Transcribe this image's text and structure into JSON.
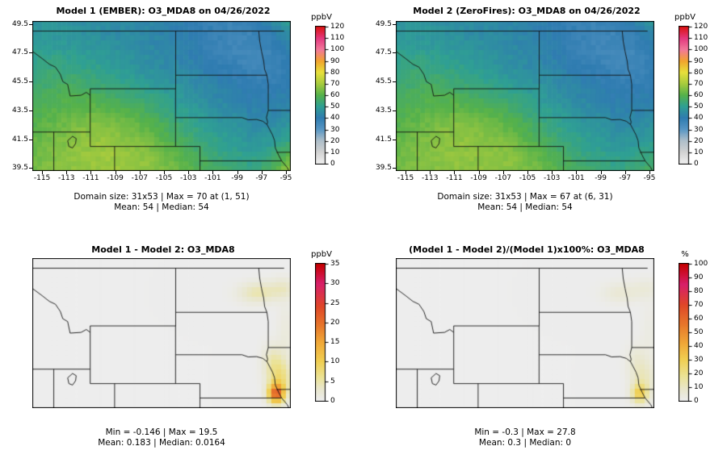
{
  "figure": {
    "background": "#ffffff"
  },
  "map_geometry": {
    "lon_range": [
      -115.8,
      -94.6
    ],
    "lat_range": [
      39.3,
      49.7
    ],
    "boundary_color": "#141414",
    "boundaries": [
      [
        [
          -115.8,
          49
        ],
        [
          -95.15,
          49
        ]
      ],
      [
        [
          -104.04,
          49
        ],
        [
          -104.04,
          45
        ]
      ],
      [
        [
          -111.05,
          45
        ],
        [
          -104.04,
          45
        ]
      ],
      [
        [
          -115.8,
          47.6
        ],
        [
          -115.0,
          47.1
        ],
        [
          -114.4,
          46.7
        ],
        [
          -113.9,
          46.5
        ],
        [
          -113.5,
          46.0
        ],
        [
          -113.3,
          45.5
        ],
        [
          -112.9,
          45.3
        ],
        [
          -112.7,
          44.5
        ],
        [
          -111.8,
          44.55
        ],
        [
          -111.37,
          44.75
        ],
        [
          -111.05,
          44.55
        ]
      ],
      [
        [
          -111.05,
          45
        ],
        [
          -111.05,
          41
        ]
      ],
      [
        [
          -115.8,
          42
        ],
        [
          -111.05,
          42
        ]
      ],
      [
        [
          -114.04,
          42
        ],
        [
          -114.04,
          39.3
        ]
      ],
      [
        [
          -111.05,
          41
        ],
        [
          -102.05,
          41
        ]
      ],
      [
        [
          -109.05,
          41
        ],
        [
          -109.05,
          39.3
        ]
      ],
      [
        [
          -104.05,
          45
        ],
        [
          -104.05,
          41
        ]
      ],
      [
        [
          -102.05,
          41
        ],
        [
          -102.05,
          39.3
        ]
      ],
      [
        [
          -102.05,
          40
        ],
        [
          -95.35,
          40
        ]
      ],
      [
        [
          -104.05,
          43
        ],
        [
          -98.6,
          43
        ],
        [
          -98.1,
          42.85
        ],
        [
          -97.4,
          42.87
        ],
        [
          -96.9,
          42.75
        ],
        [
          -96.55,
          42.52
        ]
      ],
      [
        [
          -96.55,
          42.52
        ],
        [
          -96.35,
          42.2
        ],
        [
          -96.1,
          41.8
        ],
        [
          -95.93,
          41.4
        ],
        [
          -95.87,
          40.9
        ],
        [
          -95.6,
          40.4
        ],
        [
          -95.35,
          40.0
        ]
      ],
      [
        [
          -95.35,
          40.0
        ],
        [
          -95.1,
          39.75
        ],
        [
          -94.9,
          39.55
        ],
        [
          -94.75,
          39.3
        ]
      ],
      [
        [
          -104.04,
          45.94
        ],
        [
          -96.56,
          45.94
        ]
      ],
      [
        [
          -96.56,
          45.94
        ],
        [
          -96.75,
          46.35
        ],
        [
          -96.82,
          46.9
        ],
        [
          -97.0,
          47.6
        ],
        [
          -97.15,
          48.3
        ],
        [
          -97.23,
          49.0
        ]
      ],
      [
        [
          -96.56,
          45.94
        ],
        [
          -96.45,
          45.3
        ],
        [
          -96.45,
          43.5
        ]
      ],
      [
        [
          -96.45,
          43.5
        ],
        [
          -94.6,
          43.5
        ]
      ],
      [
        [
          -96.45,
          43.5
        ],
        [
          -96.6,
          43.0
        ],
        [
          -96.5,
          42.7
        ],
        [
          -96.55,
          42.52
        ]
      ],
      [
        [
          -95.77,
          40.59
        ],
        [
          -94.6,
          40.6
        ]
      ],
      [
        [
          -112.9,
          41.4
        ],
        [
          -112.5,
          41.7
        ],
        [
          -112.2,
          41.55
        ],
        [
          -112.25,
          41.2
        ],
        [
          -112.5,
          40.9
        ],
        [
          -112.8,
          41.0
        ],
        [
          -112.9,
          41.4
        ]
      ]
    ]
  },
  "chart_data": [
    {
      "type": "heatmap",
      "title": "Model 1 (EMBER): O3_MDA8 on 04/26/2022",
      "caption1": "Domain size: 31x53 | Max = 70 at (1, 51)",
      "caption2": "Mean: 54 |  Median: 54",
      "stats": {
        "domain_size": "31x53",
        "max": 70,
        "max_at": "(1, 51)",
        "mean": 54,
        "median": 54
      },
      "axes": {
        "x_ticks": [
          -115,
          -113,
          -111,
          -109,
          -107,
          -105,
          -103,
          -101,
          -99,
          -97,
          -95
        ],
        "y_ticks": [
          39.5,
          41.5,
          43.5,
          45.5,
          47.5,
          49.5
        ]
      },
      "colorbar": {
        "label": "ppbV",
        "min": 0,
        "max": 120,
        "ticks": [
          0,
          10,
          20,
          30,
          40,
          50,
          60,
          70,
          80,
          90,
          100,
          110,
          120
        ],
        "stops": [
          {
            "v": 0,
            "c": "#efefef"
          },
          {
            "v": 10,
            "c": "#d2d2d2"
          },
          {
            "v": 20,
            "c": "#aebfca"
          },
          {
            "v": 30,
            "c": "#5897c4"
          },
          {
            "v": 40,
            "c": "#2f7cb1"
          },
          {
            "v": 50,
            "c": "#2fa094"
          },
          {
            "v": 60,
            "c": "#56b24b"
          },
          {
            "v": 70,
            "c": "#a8cc3e"
          },
          {
            "v": 80,
            "c": "#e8e13c"
          },
          {
            "v": 90,
            "c": "#f2a42e"
          },
          {
            "v": 100,
            "c": "#f2799b"
          },
          {
            "v": 110,
            "c": "#e5397f"
          },
          {
            "v": 120,
            "c": "#dc1414"
          }
        ]
      },
      "field": {
        "kind": "grid",
        "nx": 14,
        "ny": 11,
        "noise": 1.5,
        "values": [
          [
            47,
            47,
            46,
            45,
            44,
            44,
            43,
            42,
            40,
            38,
            37,
            38,
            44,
            52
          ],
          [
            48,
            48,
            47,
            46,
            45,
            44,
            43,
            42,
            40,
            38,
            36,
            36,
            39,
            45
          ],
          [
            50,
            50,
            49,
            48,
            47,
            46,
            44,
            43,
            41,
            38,
            36,
            35,
            37,
            41
          ],
          [
            52,
            53,
            52,
            51,
            49,
            47,
            45,
            44,
            42,
            40,
            38,
            36,
            37,
            39
          ],
          [
            54,
            55,
            56,
            54,
            52,
            50,
            48,
            46,
            44,
            42,
            40,
            38,
            38,
            40
          ],
          [
            56,
            58,
            59,
            58,
            56,
            54,
            52,
            49,
            46,
            44,
            42,
            40,
            40,
            42
          ],
          [
            58,
            60,
            61,
            62,
            61,
            59,
            56,
            52,
            49,
            46,
            44,
            42,
            42,
            44
          ],
          [
            60,
            62,
            64,
            66,
            65,
            63,
            60,
            56,
            52,
            49,
            47,
            45,
            45,
            47
          ],
          [
            62,
            64,
            66,
            68,
            68,
            66,
            63,
            59,
            55,
            52,
            49,
            47,
            48,
            52
          ],
          [
            63,
            65,
            67,
            68,
            69,
            68,
            66,
            62,
            58,
            54,
            52,
            50,
            53,
            62
          ],
          [
            64,
            66,
            67,
            68,
            69,
            68,
            67,
            64,
            61,
            58,
            55,
            53,
            57,
            70
          ]
        ]
      }
    },
    {
      "type": "heatmap",
      "title": "Model 2 (ZeroFires): O3_MDA8 on 04/26/2022",
      "caption1": "Domain size: 31x53 | Max = 67 at (6, 31)",
      "caption2": "Mean: 54 |  Median: 54",
      "stats": {
        "domain_size": "31x53",
        "max": 67,
        "max_at": "(6, 31)",
        "mean": 54,
        "median": 54
      },
      "axes": {
        "x_ticks": [
          -115,
          -113,
          -111,
          -109,
          -107,
          -105,
          -103,
          -101,
          -99,
          -97,
          -95
        ],
        "y_ticks": [
          39.5,
          41.5,
          43.5,
          45.5,
          47.5,
          49.5
        ]
      },
      "colorbar": {
        "label": "ppbV",
        "min": 0,
        "max": 120,
        "ticks": [
          0,
          10,
          20,
          30,
          40,
          50,
          60,
          70,
          80,
          90,
          100,
          110,
          120
        ],
        "stops": [
          {
            "v": 0,
            "c": "#efefef"
          },
          {
            "v": 10,
            "c": "#d2d2d2"
          },
          {
            "v": 20,
            "c": "#aebfca"
          },
          {
            "v": 30,
            "c": "#5897c4"
          },
          {
            "v": 40,
            "c": "#2f7cb1"
          },
          {
            "v": 50,
            "c": "#2fa094"
          },
          {
            "v": 60,
            "c": "#56b24b"
          },
          {
            "v": 70,
            "c": "#a8cc3e"
          },
          {
            "v": 80,
            "c": "#e8e13c"
          },
          {
            "v": 90,
            "c": "#f2a42e"
          },
          {
            "v": 100,
            "c": "#f2799b"
          },
          {
            "v": 110,
            "c": "#e5397f"
          },
          {
            "v": 120,
            "c": "#dc1414"
          }
        ]
      },
      "field": {
        "kind": "grid",
        "nx": 14,
        "ny": 11,
        "noise": 1.5,
        "values": [
          [
            47,
            47,
            46,
            45,
            44,
            44,
            43,
            42,
            40,
            38,
            37,
            38,
            42,
            50
          ],
          [
            48,
            48,
            47,
            46,
            45,
            44,
            43,
            42,
            40,
            38,
            36,
            36,
            38,
            43
          ],
          [
            50,
            50,
            49,
            48,
            47,
            46,
            44,
            43,
            41,
            38,
            36,
            35,
            36,
            40
          ],
          [
            52,
            53,
            52,
            51,
            49,
            47,
            45,
            44,
            42,
            40,
            38,
            36,
            36,
            38
          ],
          [
            54,
            55,
            56,
            54,
            52,
            50,
            48,
            46,
            44,
            42,
            40,
            38,
            38,
            39
          ],
          [
            56,
            58,
            59,
            58,
            56,
            54,
            52,
            49,
            46,
            44,
            42,
            40,
            40,
            41
          ],
          [
            58,
            60,
            61,
            62,
            61,
            59,
            56,
            52,
            49,
            46,
            44,
            42,
            42,
            43
          ],
          [
            60,
            62,
            64,
            66,
            65,
            63,
            60,
            56,
            52,
            49,
            47,
            45,
            45,
            46
          ],
          [
            62,
            64,
            66,
            67,
            67,
            66,
            63,
            59,
            55,
            52,
            49,
            47,
            47,
            49
          ],
          [
            63,
            65,
            66,
            67,
            67,
            67,
            66,
            62,
            58,
            54,
            52,
            50,
            51,
            54
          ],
          [
            64,
            65,
            66,
            67,
            67,
            67,
            66,
            64,
            61,
            58,
            55,
            53,
            54,
            57
          ]
        ]
      }
    },
    {
      "type": "heatmap",
      "title": "Model 1 - Model 2: O3_MDA8",
      "caption1": "Min = -0.146 | Max = 19.5",
      "caption2": "Mean: 0.183 |  Median: 0.0164",
      "stats": {
        "min": -0.146,
        "max": 19.5,
        "mean": 0.183,
        "median": 0.0164
      },
      "axes": {
        "x_ticks": [],
        "y_ticks": []
      },
      "colorbar": {
        "label": "ppbV",
        "min": 0,
        "max": 35,
        "ticks": [
          0,
          5,
          10,
          15,
          20,
          25,
          30,
          35
        ],
        "stops": [
          {
            "v": 0,
            "c": "#ededed"
          },
          {
            "v": 3,
            "c": "#e9e7cd"
          },
          {
            "v": 6,
            "c": "#ece394"
          },
          {
            "v": 10,
            "c": "#f0cf52"
          },
          {
            "v": 15,
            "c": "#f0a838"
          },
          {
            "v": 19,
            "c": "#e87a2c"
          },
          {
            "v": 24,
            "c": "#e04828"
          },
          {
            "v": 30,
            "c": "#d8206a"
          },
          {
            "v": 35,
            "c": "#c60000"
          }
        ]
      },
      "field": {
        "kind": "blobs",
        "blobs": [
          {
            "lon": -95.8,
            "lat": 40.3,
            "sx": 0.45,
            "sy": 0.45,
            "peak": 19.5
          },
          {
            "lon": -95.5,
            "lat": 41.3,
            "sx": 0.7,
            "sy": 0.9,
            "peak": 7
          },
          {
            "lon": -96.1,
            "lat": 42.6,
            "sx": 0.6,
            "sy": 0.8,
            "peak": 3.5
          },
          {
            "lon": -97.3,
            "lat": 47.3,
            "sx": 1.1,
            "sy": 0.5,
            "peak": 4.5
          },
          {
            "lon": -95.2,
            "lat": 47.6,
            "sx": 0.8,
            "sy": 0.5,
            "peak": 3
          },
          {
            "lon": -95.0,
            "lat": 44.5,
            "sx": 0.5,
            "sy": 1.5,
            "peak": 1.5
          }
        ]
      }
    },
    {
      "type": "heatmap",
      "title": "(Model 1 - Model 2)/(Model 1)x100%: O3_MDA8",
      "caption1": "Min = -0.3 | Max = 27.8",
      "caption2": "Mean: 0.3 |  Median: 0",
      "stats": {
        "min": -0.3,
        "max": 27.8,
        "mean": 0.3,
        "median": 0
      },
      "axes": {
        "x_ticks": [],
        "y_ticks": []
      },
      "colorbar": {
        "label": "%",
        "min": 0,
        "max": 100,
        "ticks": [
          0,
          10,
          20,
          30,
          40,
          50,
          60,
          70,
          80,
          90,
          100
        ],
        "stops": [
          {
            "v": 0,
            "c": "#ededed"
          },
          {
            "v": 8,
            "c": "#e9e7cd"
          },
          {
            "v": 18,
            "c": "#ece394"
          },
          {
            "v": 30,
            "c": "#f0cf52"
          },
          {
            "v": 42,
            "c": "#f0a838"
          },
          {
            "v": 55,
            "c": "#e87a2c"
          },
          {
            "v": 70,
            "c": "#e04828"
          },
          {
            "v": 85,
            "c": "#d8206a"
          },
          {
            "v": 100,
            "c": "#c60000"
          }
        ]
      },
      "field": {
        "kind": "blobs",
        "blobs": [
          {
            "lon": -95.8,
            "lat": 40.3,
            "sx": 0.45,
            "sy": 0.45,
            "peak": 27.8
          },
          {
            "lon": -95.5,
            "lat": 41.3,
            "sx": 0.7,
            "sy": 0.9,
            "peak": 10
          },
          {
            "lon": -96.1,
            "lat": 42.6,
            "sx": 0.6,
            "sy": 0.8,
            "peak": 5
          },
          {
            "lon": -97.3,
            "lat": 47.3,
            "sx": 1.1,
            "sy": 0.5,
            "peak": 6
          },
          {
            "lon": -95.2,
            "lat": 47.6,
            "sx": 0.8,
            "sy": 0.5,
            "peak": 4
          },
          {
            "lon": -95.0,
            "lat": 44.5,
            "sx": 0.5,
            "sy": 1.5,
            "peak": 2.5
          }
        ]
      }
    }
  ]
}
